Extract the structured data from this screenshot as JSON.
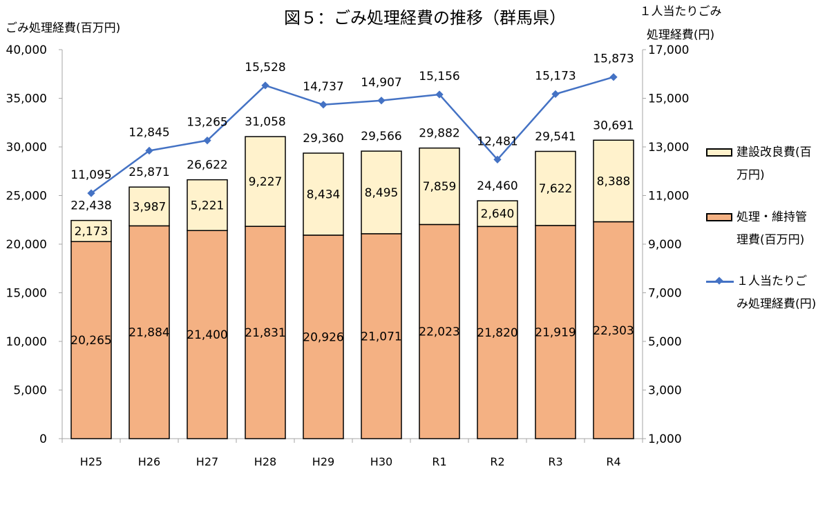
{
  "chart_data": {
    "type": "bar+line",
    "title": "図５：ごみ処理経費の推移（群馬県）",
    "ylabel_left": "ごみ処理経費(百万円)",
    "ylabel_right": [
      "１人当たりごみ",
      "処理経費(円)"
    ],
    "categories": [
      "H25",
      "H26",
      "H27",
      "H28",
      "H29",
      "H30",
      "R1",
      "R2",
      "R3",
      "R4"
    ],
    "ylim_left": [
      0,
      40000
    ],
    "ylim_right": [
      1000,
      17000
    ],
    "left_ticks": [
      "0",
      "5,000",
      "10,000",
      "15,000",
      "20,000",
      "25,000",
      "30,000",
      "35,000",
      "40,000"
    ],
    "right_ticks": [
      "1,000",
      "3,000",
      "5,000",
      "7,000",
      "9,000",
      "11,000",
      "13,000",
      "15,000",
      "17,000"
    ],
    "grid": false,
    "legend_position": "right",
    "series": [
      {
        "name": "処理・維持管理費(百万円)",
        "kind": "stacked-bar",
        "axis": "left",
        "color": "#F4B183",
        "values": [
          20265,
          21884,
          21400,
          21831,
          20926,
          21071,
          22023,
          21820,
          21919,
          22303
        ],
        "labels": [
          "20,265",
          "21,884",
          "21,400",
          "21,831",
          "20,926",
          "21,071",
          "22,023",
          "21,820",
          "21,919",
          "22,303"
        ]
      },
      {
        "name": "建設改良費(百万円)",
        "kind": "stacked-bar",
        "axis": "left",
        "color": "#FFF2CC",
        "values": [
          2173,
          3987,
          5221,
          9227,
          8434,
          8495,
          7859,
          2640,
          7622,
          8388
        ],
        "labels": [
          "2,173",
          "3,987",
          "5,221",
          "9,227",
          "8,434",
          "8,495",
          "7,859",
          "2,640",
          "7,622",
          "8,388"
        ]
      },
      {
        "name": "１人当たりごみ処理経費(円)",
        "kind": "line",
        "axis": "right",
        "color": "#4472C4",
        "values": [
          11095,
          12845,
          13265,
          15528,
          14737,
          14907,
          15156,
          12481,
          15173,
          15873
        ],
        "labels": [
          "11,095",
          "12,845",
          "13,265",
          "15,528",
          "14,737",
          "14,907",
          "15,156",
          "12,481",
          "15,173",
          "15,873"
        ]
      }
    ],
    "totals": {
      "values": [
        22438,
        25871,
        26622,
        31058,
        29360,
        29566,
        29882,
        24460,
        29541,
        30691
      ],
      "labels": [
        "22,438",
        "25,871",
        "26,622",
        "31,058",
        "29,360",
        "29,566",
        "29,882",
        "24,460",
        "29,541",
        "30,691"
      ]
    }
  },
  "legend": {
    "items": [
      {
        "label_lines": [
          "建設改良費(百",
          "万円)"
        ],
        "color": "#FFF2CC"
      },
      {
        "label_lines": [
          "処理・維持管",
          "理費(百万円)"
        ],
        "color": "#F4B183"
      },
      {
        "label_lines": [
          "１人当たりご",
          "み処理経費(円)"
        ],
        "color": "#4472C4"
      }
    ]
  }
}
